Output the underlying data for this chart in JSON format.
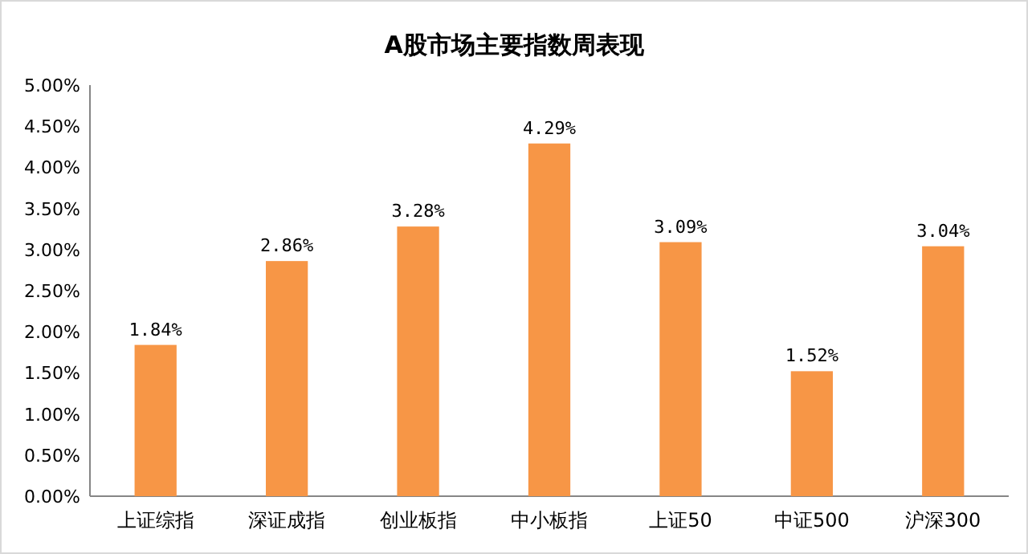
{
  "chart_data": {
    "type": "bar",
    "title": "A股市场主要指数周表现",
    "categories": [
      "上证综指",
      "深证成指",
      "创业板指",
      "中小板指",
      "上证50",
      "中证500",
      "沪深300"
    ],
    "values": [
      1.84,
      2.86,
      3.28,
      4.29,
      3.09,
      1.52,
      3.04
    ],
    "value_labels": [
      "1.84%",
      "2.86%",
      "3.28%",
      "4.29%",
      "3.09%",
      "1.52%",
      "3.04%"
    ],
    "color": "#f79646",
    "ylim": [
      0,
      5
    ],
    "yticks": [
      {
        "value": 0,
        "label": "0.00%"
      },
      {
        "value": 0.5,
        "label": "0.50%"
      },
      {
        "value": 1,
        "label": "1.00%"
      },
      {
        "value": 1.5,
        "label": "1.50%"
      },
      {
        "value": 2,
        "label": "2.00%"
      },
      {
        "value": 2.5,
        "label": "2.50%"
      },
      {
        "value": 3,
        "label": "3.00%"
      },
      {
        "value": 3.5,
        "label": "3.50%"
      },
      {
        "value": 4,
        "label": "4.00%"
      },
      {
        "value": 4.5,
        "label": "4.50%"
      },
      {
        "value": 5,
        "label": "5.00%"
      }
    ]
  }
}
